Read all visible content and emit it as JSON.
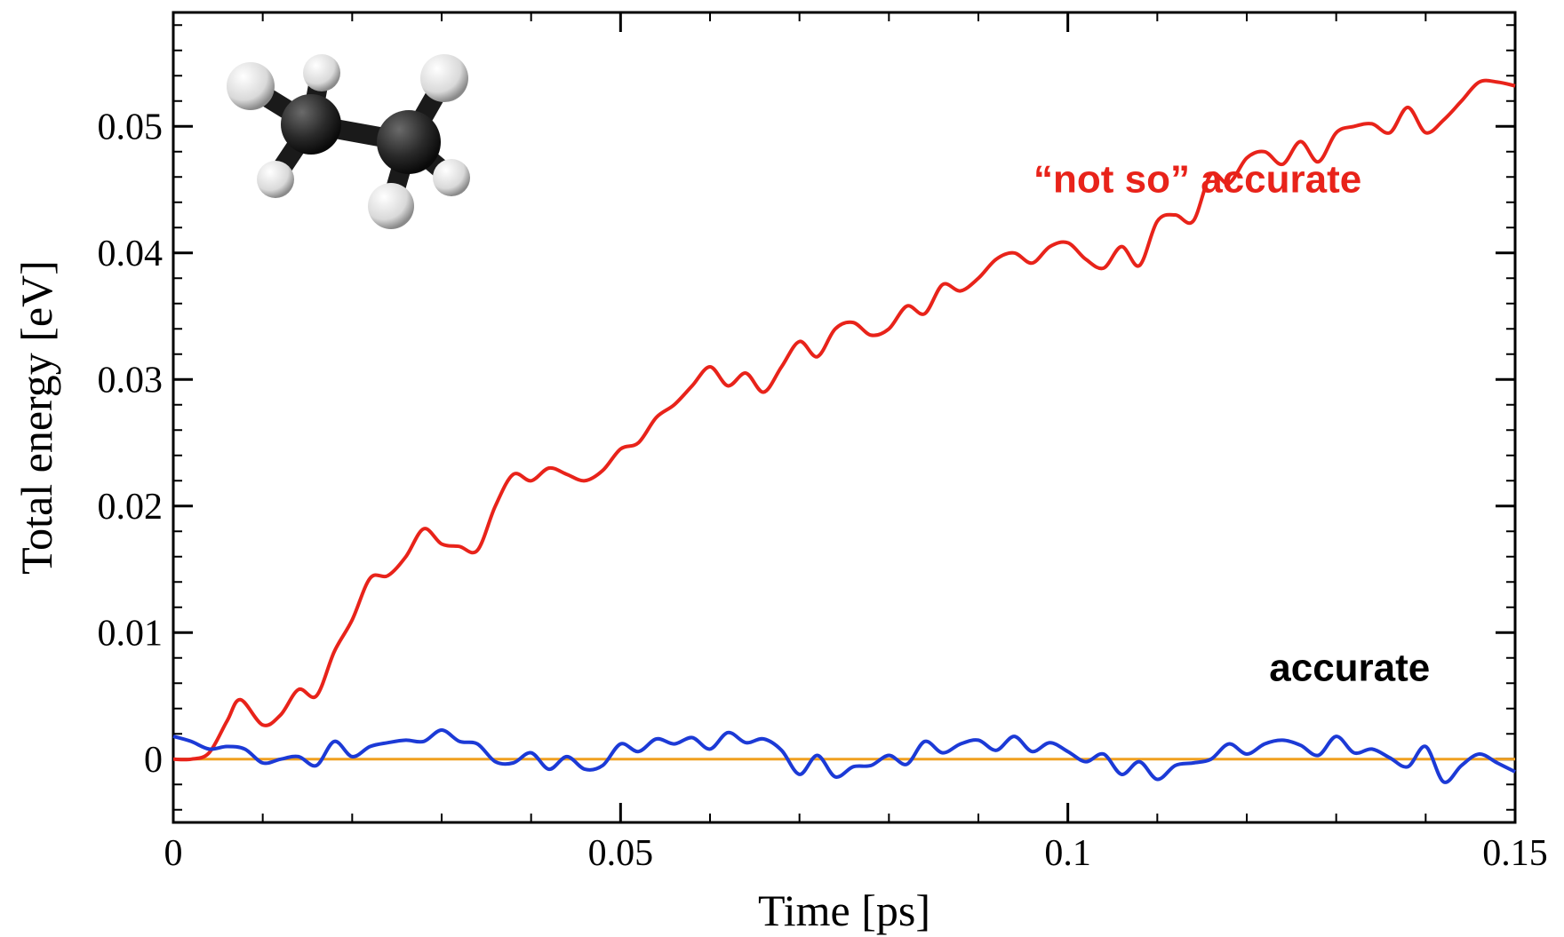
{
  "chart_data": {
    "type": "line",
    "title": "",
    "xlabel": "Time [ps]",
    "ylabel": "Total energy [eV]",
    "xlim": [
      0,
      0.15
    ],
    "ylim": [
      -0.005,
      0.059
    ],
    "x_ticks": [
      0,
      0.05,
      0.1,
      0.15
    ],
    "x_tick_labels": [
      "0",
      "0.05",
      "0.1",
      "0.15"
    ],
    "y_ticks": [
      0,
      0.01,
      0.02,
      0.03,
      0.04,
      0.05
    ],
    "y_tick_labels": [
      "0",
      "0.01",
      "0.02",
      "0.03",
      "0.04",
      "0.05"
    ],
    "grid": false,
    "legend": "none",
    "reference_line": {
      "y": 0,
      "color": "#f0a020"
    },
    "series": [
      {
        "color": "#e8231a",
        "x": [
          0,
          0.002,
          0.004,
          0.006,
          0.0075,
          0.01,
          0.012,
          0.014,
          0.016,
          0.018,
          0.02,
          0.022,
          0.024,
          0.026,
          0.028,
          0.03,
          0.032,
          0.034,
          0.036,
          0.038,
          0.04,
          0.042,
          0.044,
          0.046,
          0.048,
          0.05,
          0.052,
          0.054,
          0.056,
          0.058,
          0.06,
          0.062,
          0.064,
          0.066,
          0.068,
          0.07,
          0.072,
          0.074,
          0.076,
          0.078,
          0.08,
          0.082,
          0.084,
          0.086,
          0.088,
          0.09,
          0.092,
          0.094,
          0.096,
          0.098,
          0.1,
          0.102,
          0.104,
          0.106,
          0.108,
          0.11,
          0.112,
          0.114,
          0.116,
          0.118,
          0.12,
          0.122,
          0.124,
          0.126,
          0.128,
          0.13,
          0.132,
          0.134,
          0.136,
          0.138,
          0.14,
          0.142,
          0.144,
          0.146,
          0.148,
          0.15
        ],
        "y": [
          0,
          0,
          0.0005,
          0.003,
          0.0047,
          0.0027,
          0.0035,
          0.0055,
          0.005,
          0.0085,
          0.011,
          0.0143,
          0.0145,
          0.016,
          0.0182,
          0.017,
          0.0168,
          0.0165,
          0.02,
          0.0225,
          0.022,
          0.023,
          0.0225,
          0.022,
          0.0228,
          0.0245,
          0.025,
          0.027,
          0.028,
          0.0295,
          0.031,
          0.0295,
          0.0305,
          0.029,
          0.031,
          0.033,
          0.0318,
          0.034,
          0.0345,
          0.0335,
          0.034,
          0.0358,
          0.0352,
          0.0375,
          0.037,
          0.038,
          0.0395,
          0.04,
          0.0392,
          0.0405,
          0.0408,
          0.0395,
          0.0388,
          0.0405,
          0.039,
          0.0425,
          0.043,
          0.0425,
          0.0462,
          0.0455,
          0.0475,
          0.048,
          0.047,
          0.0488,
          0.0472,
          0.0495,
          0.05,
          0.0502,
          0.0495,
          0.0515,
          0.0495,
          0.0505,
          0.052,
          0.0535,
          0.0535,
          0.0532
        ]
      },
      {
        "color": "#1c3ad6",
        "x": [
          0,
          0.002,
          0.004,
          0.006,
          0.008,
          0.01,
          0.012,
          0.014,
          0.016,
          0.018,
          0.02,
          0.022,
          0.024,
          0.026,
          0.028,
          0.03,
          0.032,
          0.034,
          0.036,
          0.038,
          0.04,
          0.042,
          0.044,
          0.046,
          0.048,
          0.05,
          0.052,
          0.054,
          0.056,
          0.058,
          0.06,
          0.062,
          0.064,
          0.066,
          0.068,
          0.07,
          0.072,
          0.074,
          0.076,
          0.078,
          0.08,
          0.082,
          0.084,
          0.086,
          0.088,
          0.09,
          0.092,
          0.094,
          0.096,
          0.098,
          0.1,
          0.102,
          0.104,
          0.106,
          0.108,
          0.11,
          0.112,
          0.114,
          0.116,
          0.118,
          0.12,
          0.122,
          0.124,
          0.126,
          0.128,
          0.13,
          0.132,
          0.134,
          0.136,
          0.138,
          0.14,
          0.142,
          0.144,
          0.146,
          0.148,
          0.15
        ],
        "y": [
          0.0018,
          0.0014,
          0.0008,
          0.001,
          0.0008,
          -0.0003,
          0,
          0.0002,
          -0.0005,
          0.0014,
          0.0002,
          0.001,
          0.0013,
          0.0015,
          0.0014,
          0.0023,
          0.0014,
          0.0012,
          -0.0002,
          -0.0003,
          0.0005,
          -0.0008,
          0.0002,
          -0.0008,
          -0.0005,
          0.0012,
          0.0006,
          0.0016,
          0.0012,
          0.0017,
          0.0008,
          0.0021,
          0.0013,
          0.0016,
          0.0007,
          -0.0012,
          0.0003,
          -0.0014,
          -0.0006,
          -0.0005,
          0.0003,
          -0.0004,
          0.0014,
          0.0005,
          0.0012,
          0.0015,
          0.0007,
          0.0018,
          0.0006,
          0.0013,
          0.0006,
          -0.0002,
          0.0004,
          -0.0012,
          -0.0002,
          -0.0016,
          -0.0005,
          -0.0003,
          0,
          0.0012,
          0.0004,
          0.0012,
          0.0015,
          0.0011,
          0.0003,
          0.0018,
          0.0005,
          0.0008,
          0.0001,
          -0.0006,
          0.001,
          -0.0018,
          -0.0005,
          0.0004,
          -0.0003,
          -0.001
        ]
      }
    ],
    "annotations": [
      {
        "text": "“not so” accurate",
        "color": "#e8231a",
        "x": 0.1145,
        "y": 0.0448
      },
      {
        "text": "accurate",
        "color": "#000000",
        "x": 0.1315,
        "y": 0.0062
      }
    ]
  }
}
